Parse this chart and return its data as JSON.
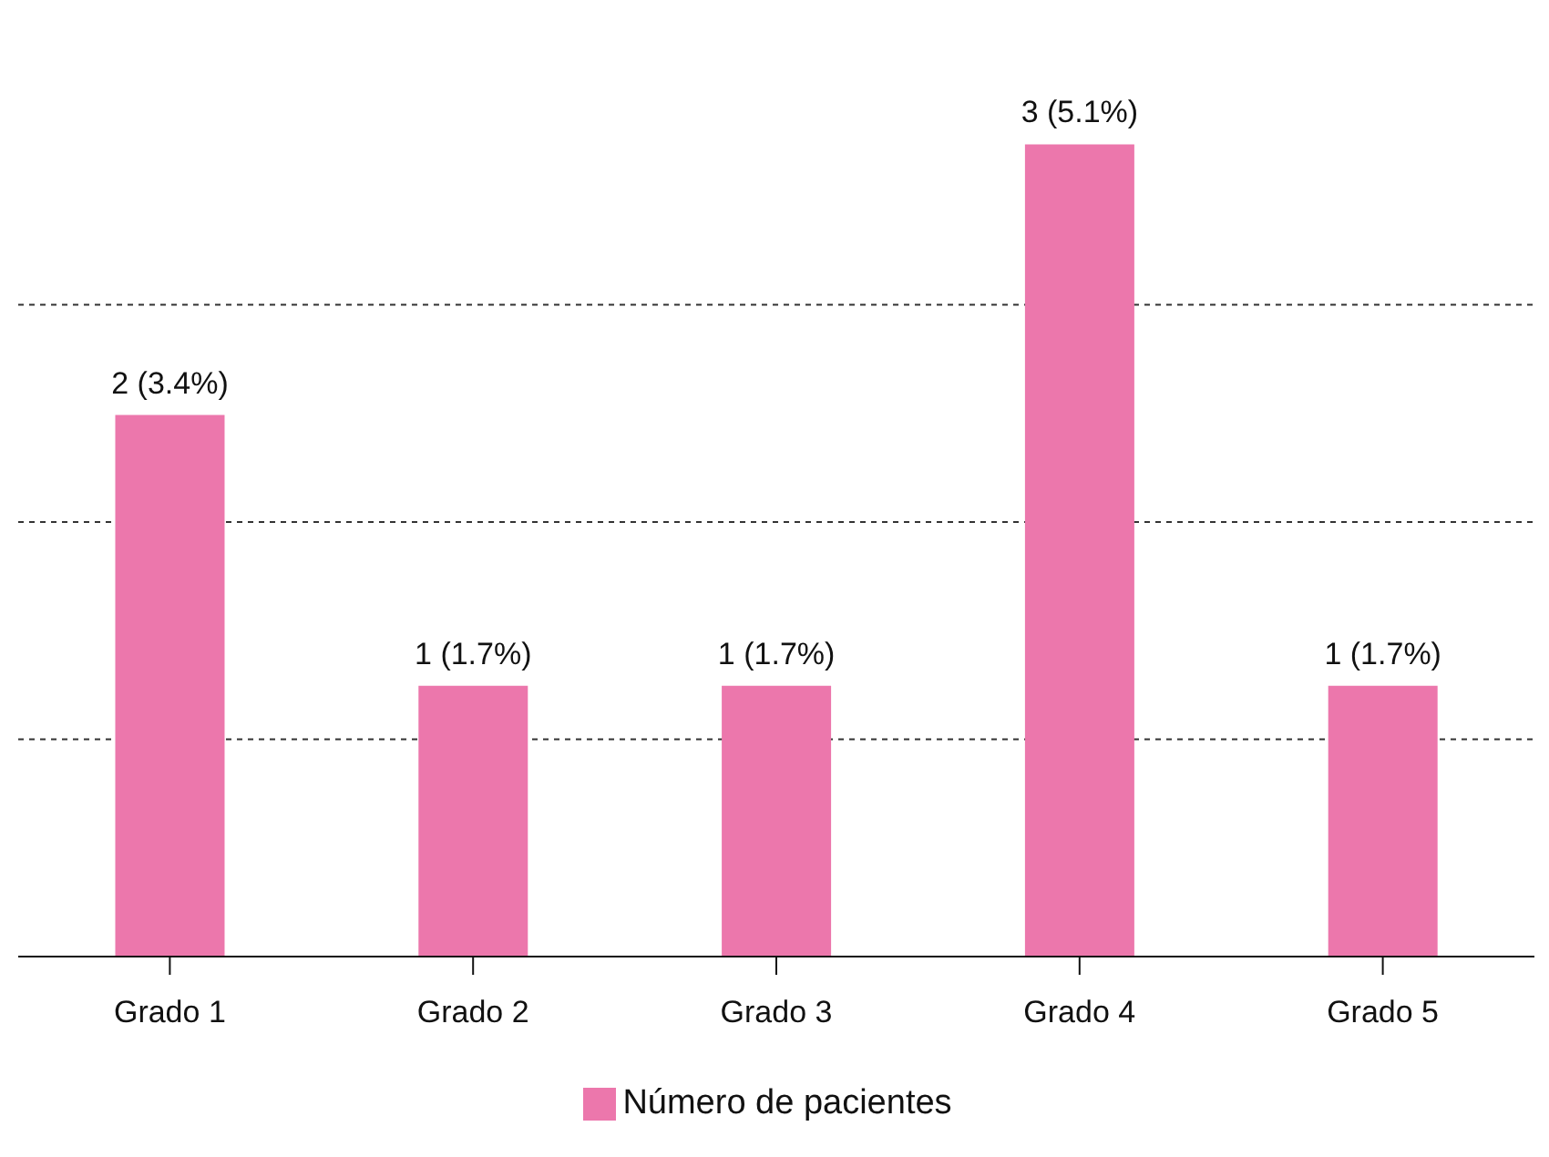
{
  "chart_data": {
    "type": "bar",
    "categories": [
      "Grado 1",
      "Grado 2",
      "Grado 3",
      "Grado 4",
      "Grado 5"
    ],
    "series": [
      {
        "name": "Número de pacientes",
        "color": "#ec77ac",
        "values": [
          2,
          1,
          1,
          3,
          1
        ],
        "value_labels": [
          "2 (3.4%)",
          "1 (1.7%)",
          "1 (1.7%)",
          "3 (5.1%)",
          "1 (1.7%)"
        ]
      }
    ],
    "grid": "y",
    "legend": "bottom",
    "tick_labels": "x"
  }
}
